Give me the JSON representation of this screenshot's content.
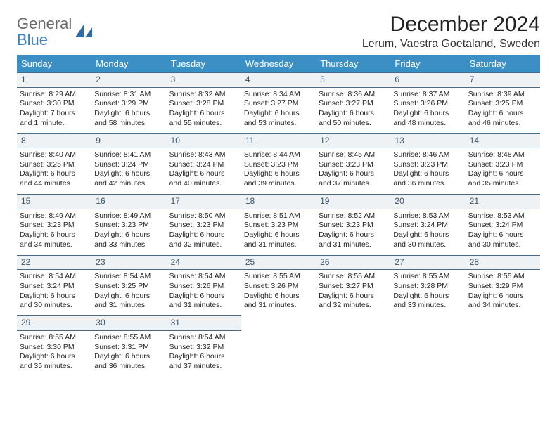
{
  "logo": {
    "line1": "General",
    "line2": "Blue"
  },
  "title": "December 2024",
  "location": "Lerum, Vaestra Goetaland, Sweden",
  "colors": {
    "header_bg": "#3b8fc4",
    "header_text": "#ffffff",
    "daynum_bg": "#eef2f5",
    "daynum_border": "#4a6b85",
    "daynum_text": "#3a5468",
    "body_text": "#252525",
    "logo_gray": "#6b6b6b",
    "logo_blue": "#3b82c4"
  },
  "weekdays": [
    "Sunday",
    "Monday",
    "Tuesday",
    "Wednesday",
    "Thursday",
    "Friday",
    "Saturday"
  ],
  "weeks": [
    [
      {
        "n": "1",
        "sr": "8:29 AM",
        "ss": "3:30 PM",
        "dl": "7 hours and 1 minute."
      },
      {
        "n": "2",
        "sr": "8:31 AM",
        "ss": "3:29 PM",
        "dl": "6 hours and 58 minutes."
      },
      {
        "n": "3",
        "sr": "8:32 AM",
        "ss": "3:28 PM",
        "dl": "6 hours and 55 minutes."
      },
      {
        "n": "4",
        "sr": "8:34 AM",
        "ss": "3:27 PM",
        "dl": "6 hours and 53 minutes."
      },
      {
        "n": "5",
        "sr": "8:36 AM",
        "ss": "3:27 PM",
        "dl": "6 hours and 50 minutes."
      },
      {
        "n": "6",
        "sr": "8:37 AM",
        "ss": "3:26 PM",
        "dl": "6 hours and 48 minutes."
      },
      {
        "n": "7",
        "sr": "8:39 AM",
        "ss": "3:25 PM",
        "dl": "6 hours and 46 minutes."
      }
    ],
    [
      {
        "n": "8",
        "sr": "8:40 AM",
        "ss": "3:25 PM",
        "dl": "6 hours and 44 minutes."
      },
      {
        "n": "9",
        "sr": "8:41 AM",
        "ss": "3:24 PM",
        "dl": "6 hours and 42 minutes."
      },
      {
        "n": "10",
        "sr": "8:43 AM",
        "ss": "3:24 PM",
        "dl": "6 hours and 40 minutes."
      },
      {
        "n": "11",
        "sr": "8:44 AM",
        "ss": "3:23 PM",
        "dl": "6 hours and 39 minutes."
      },
      {
        "n": "12",
        "sr": "8:45 AM",
        "ss": "3:23 PM",
        "dl": "6 hours and 37 minutes."
      },
      {
        "n": "13",
        "sr": "8:46 AM",
        "ss": "3:23 PM",
        "dl": "6 hours and 36 minutes."
      },
      {
        "n": "14",
        "sr": "8:48 AM",
        "ss": "3:23 PM",
        "dl": "6 hours and 35 minutes."
      }
    ],
    [
      {
        "n": "15",
        "sr": "8:49 AM",
        "ss": "3:23 PM",
        "dl": "6 hours and 34 minutes."
      },
      {
        "n": "16",
        "sr": "8:49 AM",
        "ss": "3:23 PM",
        "dl": "6 hours and 33 minutes."
      },
      {
        "n": "17",
        "sr": "8:50 AM",
        "ss": "3:23 PM",
        "dl": "6 hours and 32 minutes."
      },
      {
        "n": "18",
        "sr": "8:51 AM",
        "ss": "3:23 PM",
        "dl": "6 hours and 31 minutes."
      },
      {
        "n": "19",
        "sr": "8:52 AM",
        "ss": "3:23 PM",
        "dl": "6 hours and 31 minutes."
      },
      {
        "n": "20",
        "sr": "8:53 AM",
        "ss": "3:24 PM",
        "dl": "6 hours and 30 minutes."
      },
      {
        "n": "21",
        "sr": "8:53 AM",
        "ss": "3:24 PM",
        "dl": "6 hours and 30 minutes."
      }
    ],
    [
      {
        "n": "22",
        "sr": "8:54 AM",
        "ss": "3:24 PM",
        "dl": "6 hours and 30 minutes."
      },
      {
        "n": "23",
        "sr": "8:54 AM",
        "ss": "3:25 PM",
        "dl": "6 hours and 31 minutes."
      },
      {
        "n": "24",
        "sr": "8:54 AM",
        "ss": "3:26 PM",
        "dl": "6 hours and 31 minutes."
      },
      {
        "n": "25",
        "sr": "8:55 AM",
        "ss": "3:26 PM",
        "dl": "6 hours and 31 minutes."
      },
      {
        "n": "26",
        "sr": "8:55 AM",
        "ss": "3:27 PM",
        "dl": "6 hours and 32 minutes."
      },
      {
        "n": "27",
        "sr": "8:55 AM",
        "ss": "3:28 PM",
        "dl": "6 hours and 33 minutes."
      },
      {
        "n": "28",
        "sr": "8:55 AM",
        "ss": "3:29 PM",
        "dl": "6 hours and 34 minutes."
      }
    ],
    [
      {
        "n": "29",
        "sr": "8:55 AM",
        "ss": "3:30 PM",
        "dl": "6 hours and 35 minutes."
      },
      {
        "n": "30",
        "sr": "8:55 AM",
        "ss": "3:31 PM",
        "dl": "6 hours and 36 minutes."
      },
      {
        "n": "31",
        "sr": "8:54 AM",
        "ss": "3:32 PM",
        "dl": "6 hours and 37 minutes."
      },
      null,
      null,
      null,
      null
    ]
  ],
  "labels": {
    "sunrise": "Sunrise: ",
    "sunset": "Sunset: ",
    "daylight": "Daylight: "
  }
}
